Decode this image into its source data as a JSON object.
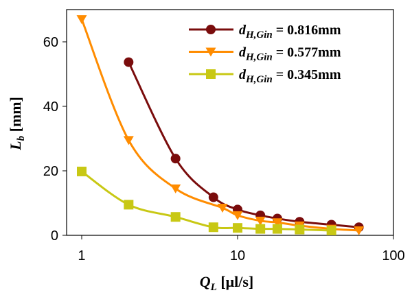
{
  "chart_data": {
    "type": "line",
    "x_label": [
      "Q",
      "L",
      " [μl/s]"
    ],
    "y_label": [
      "L",
      "b",
      " [mm]"
    ],
    "xscale": "log",
    "xlim": [
      0.8,
      100
    ],
    "xticks": [
      1,
      10,
      100
    ],
    "ylim": [
      0,
      70
    ],
    "yticks": [
      0,
      20,
      40,
      60
    ],
    "grid": false,
    "legend": "upper right",
    "series": [
      {
        "name": [
          "d",
          "H,Gin",
          " = 0.816mm"
        ],
        "color": "#7a0c0c",
        "marker": "circle",
        "x": [
          2,
          4,
          7,
          10,
          14,
          18,
          25,
          40,
          60
        ],
        "values": [
          53.7,
          23.8,
          11.8,
          8,
          6.2,
          5.2,
          4.2,
          3.3,
          2.5
        ]
      },
      {
        "name": [
          "d",
          "H,Gin",
          " = 0.577mm"
        ],
        "color": "#ff8c00",
        "marker": "triangle-down",
        "x": [
          1,
          2,
          4,
          8,
          10,
          14,
          18,
          25,
          40,
          60
        ],
        "values": [
          67,
          29.5,
          14.5,
          8.5,
          6.2,
          4.5,
          4,
          3,
          2,
          1.5
        ]
      },
      {
        "name": [
          "d",
          "H,Gin",
          " = 0.345mm"
        ],
        "color": "#c8c814",
        "marker": "square",
        "x": [
          1,
          2,
          4,
          7,
          10,
          14,
          18,
          25,
          40
        ],
        "values": [
          19.8,
          9.5,
          5.7,
          2.5,
          2.3,
          2,
          2,
          1.8,
          1.5
        ]
      }
    ]
  }
}
